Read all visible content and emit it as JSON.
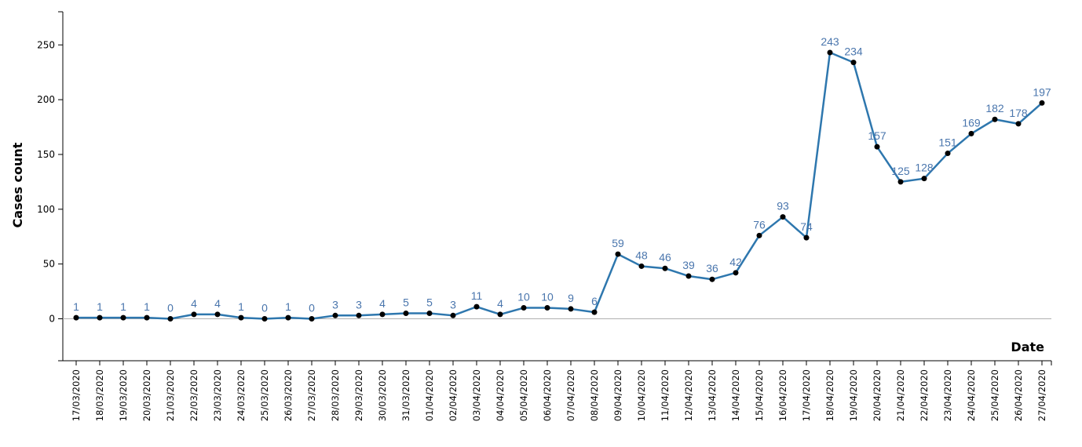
{
  "chart_data": {
    "type": "line",
    "xlabel": "Date",
    "ylabel": "Cases count",
    "ylim": [
      -40,
      280
    ],
    "yticks": [
      0,
      50,
      100,
      150,
      200,
      250
    ],
    "grid": false,
    "show_data_labels": true,
    "colors": {
      "line": "#2e77ae",
      "point": "#000000",
      "label": "#4a76ad",
      "zero_line": "#b0b0b0"
    },
    "series": [
      {
        "x": [
          "17/03/2020",
          "18/03/2020",
          "19/03/2020",
          "20/03/2020",
          "21/03/2020",
          "22/03/2020",
          "23/03/2020",
          "24/03/2020",
          "25/03/2020",
          "26/03/2020",
          "27/03/2020",
          "28/03/2020",
          "29/03/2020",
          "30/03/2020",
          "31/03/2020",
          "01/04/2020",
          "02/04/2020",
          "03/04/2020",
          "04/04/2020",
          "05/04/2020",
          "06/04/2020",
          "07/04/2020",
          "08/04/2020",
          "09/04/2020",
          "10/04/2020",
          "11/04/2020",
          "12/04/2020",
          "13/04/2020",
          "14/04/2020",
          "15/04/2020",
          "16/04/2020",
          "17/04/2020",
          "18/04/2020",
          "19/04/2020",
          "20/04/2020",
          "21/04/2020",
          "22/04/2020",
          "23/04/2020",
          "24/04/2020",
          "25/04/2020",
          "26/04/2020",
          "27/04/2020"
        ],
        "values": [
          1,
          1,
          1,
          1,
          0,
          4,
          4,
          1,
          0,
          1,
          0,
          3,
          3,
          4,
          5,
          5,
          3,
          11,
          4,
          10,
          10,
          9,
          6,
          59,
          48,
          46,
          39,
          36,
          42,
          76,
          93,
          74,
          243,
          234,
          157,
          125,
          128,
          151,
          169,
          182,
          178,
          197
        ]
      }
    ]
  }
}
